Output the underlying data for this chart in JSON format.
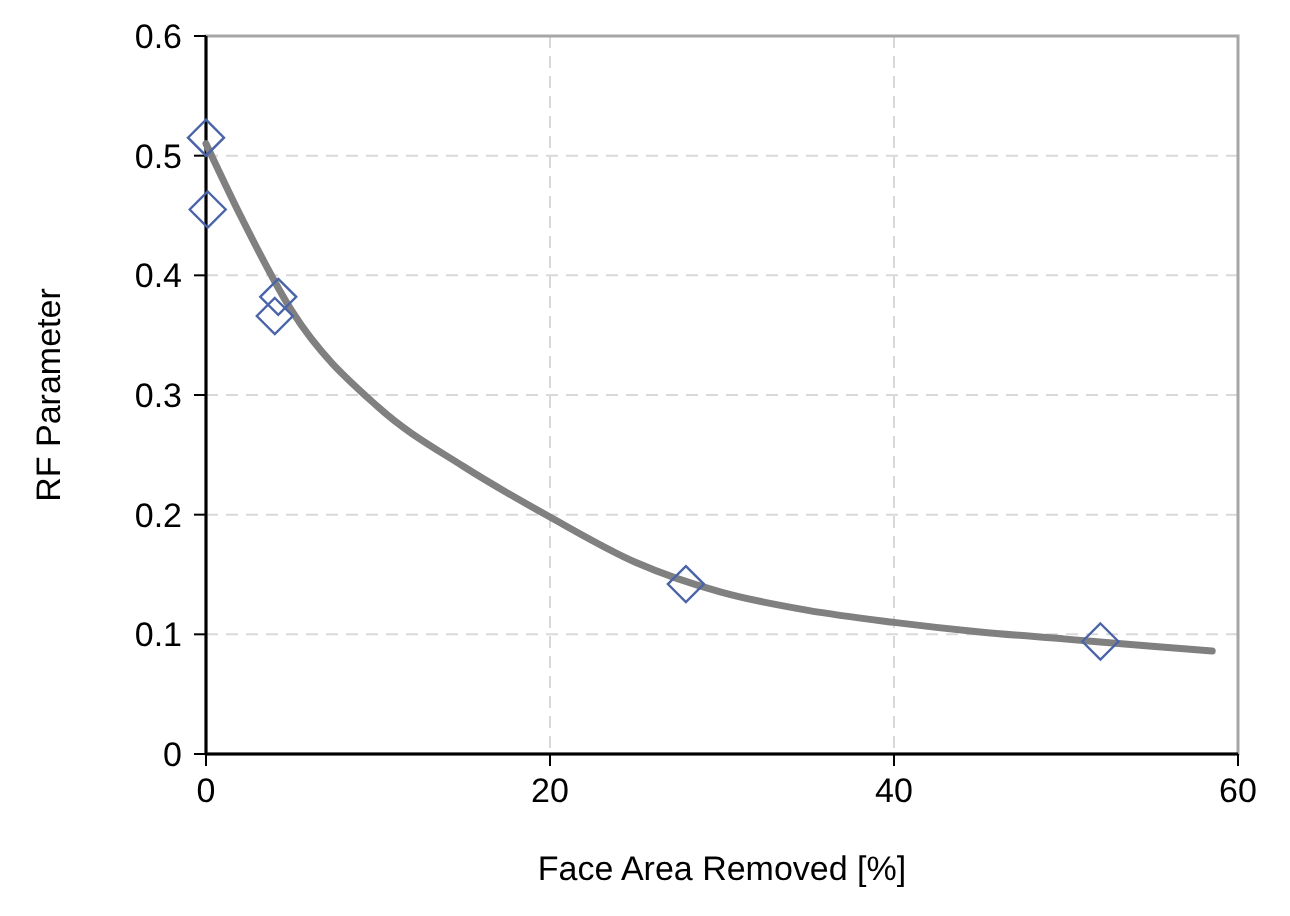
{
  "chart_data": {
    "type": "scatter",
    "xlabel": "Face Area Removed [%]",
    "ylabel": "RF Parameter",
    "xlim": [
      0,
      60
    ],
    "ylim": [
      0,
      0.6
    ],
    "xticks": [
      0,
      20,
      40,
      60
    ],
    "yticks": [
      0,
      0.1,
      0.2,
      0.3,
      0.4,
      0.5,
      0.6
    ],
    "grid": true,
    "series": [
      {
        "color": "#4a64a8",
        "marker": "diamond",
        "x": [
          0,
          0.1,
          4.2,
          4.0,
          27.9,
          52
        ],
        "values": [
          0.515,
          0.455,
          0.382,
          0.366,
          0.142,
          0.094
        ]
      },
      {
        "type": "line",
        "color": "#808080",
        "line_style": "solid",
        "x": [
          0,
          2,
          5,
          10,
          15,
          20,
          25,
          30,
          35,
          40,
          45,
          50,
          55,
          58.5
        ],
        "values": [
          0.51,
          0.45,
          0.37,
          0.29,
          0.24,
          0.198,
          0.16,
          0.135,
          0.12,
          0.11,
          0.102,
          0.096,
          0.09,
          0.086
        ]
      }
    ]
  }
}
